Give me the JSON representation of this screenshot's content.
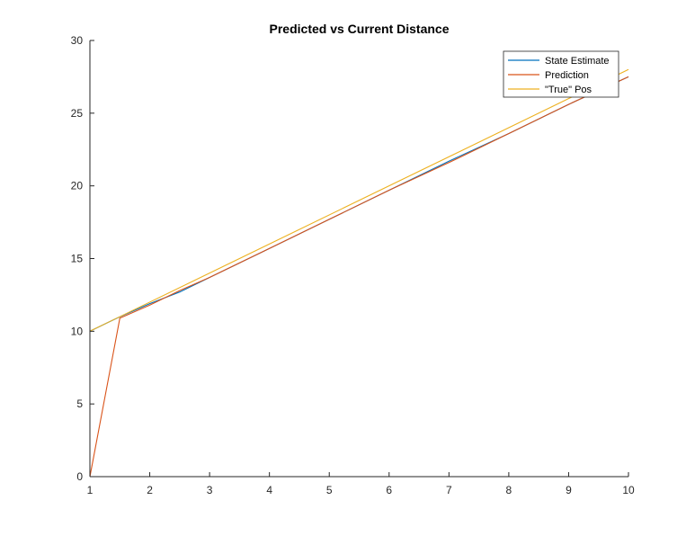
{
  "chart_data": {
    "type": "line",
    "title": "Predicted vs Current Distance",
    "xlabel": "",
    "ylabel": "",
    "xlim": [
      1,
      10
    ],
    "ylim": [
      0,
      30
    ],
    "xticks": [
      1,
      2,
      3,
      4,
      5,
      6,
      7,
      8,
      9,
      10
    ],
    "yticks": [
      0,
      5,
      10,
      15,
      20,
      25,
      30
    ],
    "grid": false,
    "legend_position": "top-right",
    "series": [
      {
        "name": "State Estimate",
        "color": "#0072BD",
        "x": [
          1,
          1.5,
          2,
          2.5,
          3,
          4,
          5,
          6,
          7,
          8,
          9,
          10
        ],
        "y": [
          10,
          11.0,
          11.9,
          12.7,
          13.7,
          15.7,
          17.7,
          19.7,
          21.7,
          23.6,
          25.6,
          27.5
        ]
      },
      {
        "name": "Prediction",
        "color": "#D95319",
        "x": [
          1,
          1.5,
          2,
          2.5,
          3,
          4,
          5,
          6,
          7,
          8,
          9,
          10
        ],
        "y": [
          0,
          10.9,
          11.8,
          12.8,
          13.7,
          15.7,
          17.7,
          19.7,
          21.6,
          23.6,
          25.6,
          27.5
        ]
      },
      {
        "name": "\"True\" Pos",
        "color": "#EDB120",
        "x": [
          1,
          10
        ],
        "y": [
          10,
          28
        ]
      }
    ]
  }
}
